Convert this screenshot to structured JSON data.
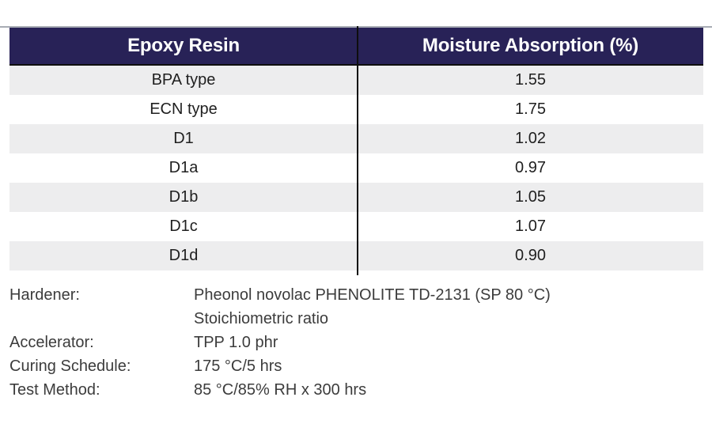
{
  "table": {
    "columns": [
      "Epoxy Resin",
      "Moisture Absorption (%)"
    ],
    "rows": [
      {
        "resin": "BPA type",
        "absorption": "1.55"
      },
      {
        "resin": "ECN type",
        "absorption": "1.75"
      },
      {
        "resin": "D1",
        "absorption": "1.02"
      },
      {
        "resin": "D1a",
        "absorption": "0.97"
      },
      {
        "resin": "D1b",
        "absorption": "1.05"
      },
      {
        "resin": "D1c",
        "absorption": "1.07"
      },
      {
        "resin": "D1d",
        "absorption": "0.90"
      }
    ]
  },
  "footnotes": [
    {
      "label": "Hardener:",
      "value": "Pheonol novolac PHENOLITE TD-2131 (SP 80 °C)"
    },
    {
      "label": "",
      "value": "Stoichiometric ratio"
    },
    {
      "label": "Accelerator:",
      "value": "TPP 1.0 phr"
    },
    {
      "label": "Curing Schedule:",
      "value": "175 °C/5 hrs"
    },
    {
      "label": "Test Method:",
      "value": "85 °C/85% RH x 300 hrs"
    }
  ],
  "colors": {
    "header_bg": "#282257",
    "header_text": "#ffffff",
    "row_alt_bg": "#ededee",
    "row_bg": "#ffffff",
    "divider": "#0e0e0e",
    "top_border": "#a8acb4",
    "body_text": "#1f1f1f",
    "footnote_text": "#3c3c3c"
  },
  "chart_data": {
    "type": "table",
    "title": "",
    "columns": [
      "Epoxy Resin",
      "Moisture Absorption (%)"
    ],
    "rows": [
      [
        "BPA type",
        1.55
      ],
      [
        "ECN type",
        1.75
      ],
      [
        "D1",
        1.02
      ],
      [
        "D1a",
        0.97
      ],
      [
        "D1b",
        1.05
      ],
      [
        "D1c",
        1.07
      ],
      [
        "D1d",
        0.9
      ]
    ],
    "notes": [
      "Hardener: Pheonol novolac PHENOLITE TD-2131 (SP 80 °C) Stoichiometric ratio",
      "Accelerator: TPP 1.0 phr",
      "Curing Schedule: 175 °C/5 hrs",
      "Test Method: 85 °C/85% RH x 300 hrs"
    ],
    "layout_hints": {
      "header_style": "dark navy band, white bold centered text",
      "zebra_striping": "odd rows light gray starting with first data row",
      "column_divider": "thin black vertical rule between the two columns",
      "alignment": "all cells centered"
    }
  }
}
